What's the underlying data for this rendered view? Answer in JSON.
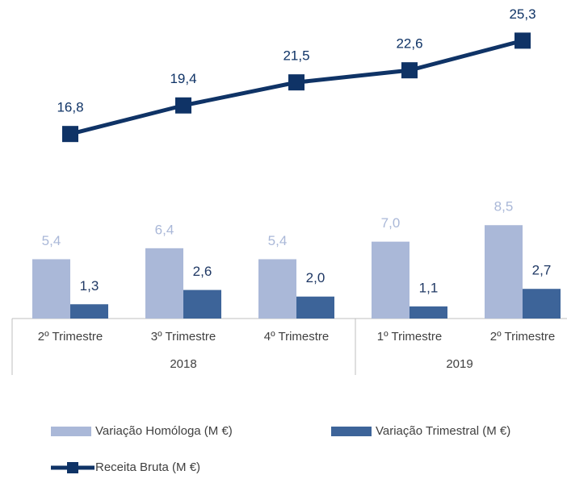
{
  "chart_data": {
    "type": "bar-line",
    "categories": [
      "2º Trimestre",
      "3º Trimestre",
      "4º Trimestre",
      "1º Trimestre",
      "2º Trimestre"
    ],
    "x_groups": [
      {
        "label": "2018",
        "count": 3
      },
      {
        "label": "2019",
        "count": 2
      }
    ],
    "ylim": [
      0,
      29
    ],
    "series": [
      {
        "name": "Variação Homóloga (M €)",
        "type": "bar",
        "color": "#aab8d8",
        "label_color": "#aab8d8",
        "values": [
          5.4,
          6.4,
          5.4,
          7.0,
          8.5
        ],
        "value_labels": [
          "5,4",
          "6,4",
          "5,4",
          "7,0",
          "8,5"
        ]
      },
      {
        "name": "Variação Trimestral (M €)",
        "type": "bar",
        "color": "#3d6499",
        "label_color": "#1f3864",
        "values": [
          1.3,
          2.6,
          2.0,
          1.1,
          2.7
        ],
        "value_labels": [
          "1,3",
          "2,6",
          "2,0",
          "1,1",
          "2,7"
        ]
      },
      {
        "name": "Receita Bruta (M €)",
        "type": "line",
        "color": "#0f3366",
        "label_color": "#0f3366",
        "values": [
          16.8,
          19.4,
          21.5,
          22.6,
          25.3
        ],
        "value_labels": [
          "16,8",
          "19,4",
          "21,5",
          "22,6",
          "25,3"
        ]
      }
    ]
  }
}
